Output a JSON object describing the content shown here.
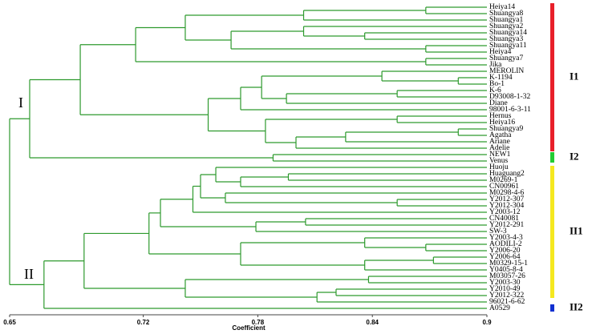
{
  "chart_data": {
    "type": "dendrogram",
    "x_label": "Coefficient",
    "xlim": [
      0.65,
      0.9
    ],
    "xticks": [
      0.65,
      0.72,
      0.78,
      0.84,
      0.9
    ],
    "line_color": "#2e9a2e",
    "clusters": [
      "I",
      "II"
    ],
    "groups": [
      {
        "name": "I1",
        "color": "#e8202a"
      },
      {
        "name": "I2",
        "color": "#22cc33"
      },
      {
        "name": "II1",
        "color": "#f5e820"
      },
      {
        "name": "II2",
        "color": "#1030d0"
      }
    ],
    "tree": {
      "value": 0.65,
      "children": [
        {
          "value": 0.6605,
          "children": [
            {
              "value": 0.687,
              "children": [
                {
                  "value": 0.716,
                  "children": [
                    {
                      "value": 0.742,
                      "children": [
                        {
                          "value": 0.804,
                          "children": [
                            {
                              "value": 0.868,
                              "children": [
                                "Heiya14",
                                "Shuangya8"
                              ]
                            },
                            "Shuangya1"
                          ]
                        },
                        {
                          "value": 0.766,
                          "children": [
                            {
                              "value": 0.804,
                              "children": [
                                "Shuangya2",
                                {
                                  "value": 0.836,
                                  "children": [
                                    "Shuangya14",
                                    "Shuangya3"
                                  ]
                                }
                              ]
                            },
                            {
                              "value": 0.868,
                              "children": [
                                "Shuangya11",
                                "Heiya4"
                              ]
                            }
                          ]
                        }
                      ]
                    },
                    {
                      "value": 0.868,
                      "children": [
                        "Shuangya7",
                        "Jika"
                      ]
                    }
                  ]
                },
                {
                  "value": 0.754,
                  "children": [
                    {
                      "value": 0.771,
                      "children": [
                        {
                          "value": 0.782,
                          "children": [
                            {
                              "value": 0.845,
                              "children": [
                                "MEROLIN",
                                {
                                  "value": 0.885,
                                  "children": [
                                    "K-1194",
                                    "Bo-1"
                                  ]
                                }
                              ]
                            },
                            {
                              "value": 0.795,
                              "children": [
                                {
                                  "value": 0.853,
                                  "children": [
                                    "K-6",
                                    "D93008-1-32"
                                  ]
                                },
                                "Diane"
                              ]
                            }
                          ]
                        },
                        "98001-6-3-11"
                      ]
                    },
                    {
                      "value": 0.784,
                      "children": [
                        {
                          "value": 0.853,
                          "children": [
                            "Hernus",
                            "Heiya16"
                          ]
                        },
                        {
                          "value": 0.8,
                          "children": [
                            {
                              "value": 0.826,
                              "children": [
                                {
                                  "value": 0.885,
                                  "children": [
                                    "Shuangya9",
                                    "Agatha"
                                  ]
                                },
                                "Ariane"
                              ]
                            },
                            "Adelie"
                          ]
                        }
                      ]
                    }
                  ]
                }
              ]
            },
            {
              "value": 0.788,
              "children": [
                "NEW1",
                "Venus"
              ]
            }
          ]
        },
        {
          "value": 0.668,
          "children": [
            {
              "value": 0.689,
              "children": [
                {
                  "value": 0.723,
                  "children": [
                    {
                      "value": 0.729,
                      "children": [
                        {
                          "value": 0.746,
                          "children": [
                            {
                              "value": 0.75,
                              "children": [
                                {
                                  "value": 0.758,
                                  "children": [
                                    "Huoju",
                                    {
                                      "value": 0.771,
                                      "children": [
                                        {
                                          "value": 0.796,
                                          "children": [
                                            "Huaguang2",
                                            "M0269-1"
                                          ]
                                        },
                                        "CN00961"
                                      ]
                                    }
                                  ]
                                },
                                {
                                  "value": 0.763,
                                  "children": [
                                    "M0298-4-6",
                                    {
                                      "value": 0.853,
                                      "children": [
                                        "Y2012-307",
                                        "Y2012-304"
                                      ]
                                    }
                                  ]
                                }
                              ]
                            },
                            "Y2003-12"
                          ]
                        },
                        {
                          "value": 0.779,
                          "children": [
                            {
                              "value": 0.805,
                              "children": [
                                "CN40081",
                                "Y2012-291"
                              ]
                            },
                            "SW-3"
                          ]
                        }
                      ]
                    },
                    {
                      "value": 0.771,
                      "children": [
                        {
                          "value": 0.836,
                          "children": [
                            "Y2003-4-3",
                            {
                              "value": 0.868,
                              "children": [
                                "AODILI-2",
                                "Y2006-20"
                              ]
                            }
                          ]
                        },
                        {
                          "value": 0.836,
                          "children": [
                            {
                              "value": 0.872,
                              "children": [
                                "Y2006-64",
                                "M0329-15-1"
                              ]
                            },
                            "Y0405-8-4"
                          ]
                        }
                      ]
                    }
                  ]
                },
                {
                  "value": 0.742,
                  "children": [
                    {
                      "value": 0.838,
                      "children": [
                        "M03057-26",
                        "Y2003-30"
                      ]
                    },
                    {
                      "value": 0.811,
                      "children": [
                        {
                          "value": 0.821,
                          "children": [
                            "Y2010-49",
                            "Y2012-322"
                          ]
                        },
                        "96021-6-62"
                      ]
                    }
                  ]
                }
              ]
            },
            "A0529"
          ]
        }
      ]
    }
  }
}
